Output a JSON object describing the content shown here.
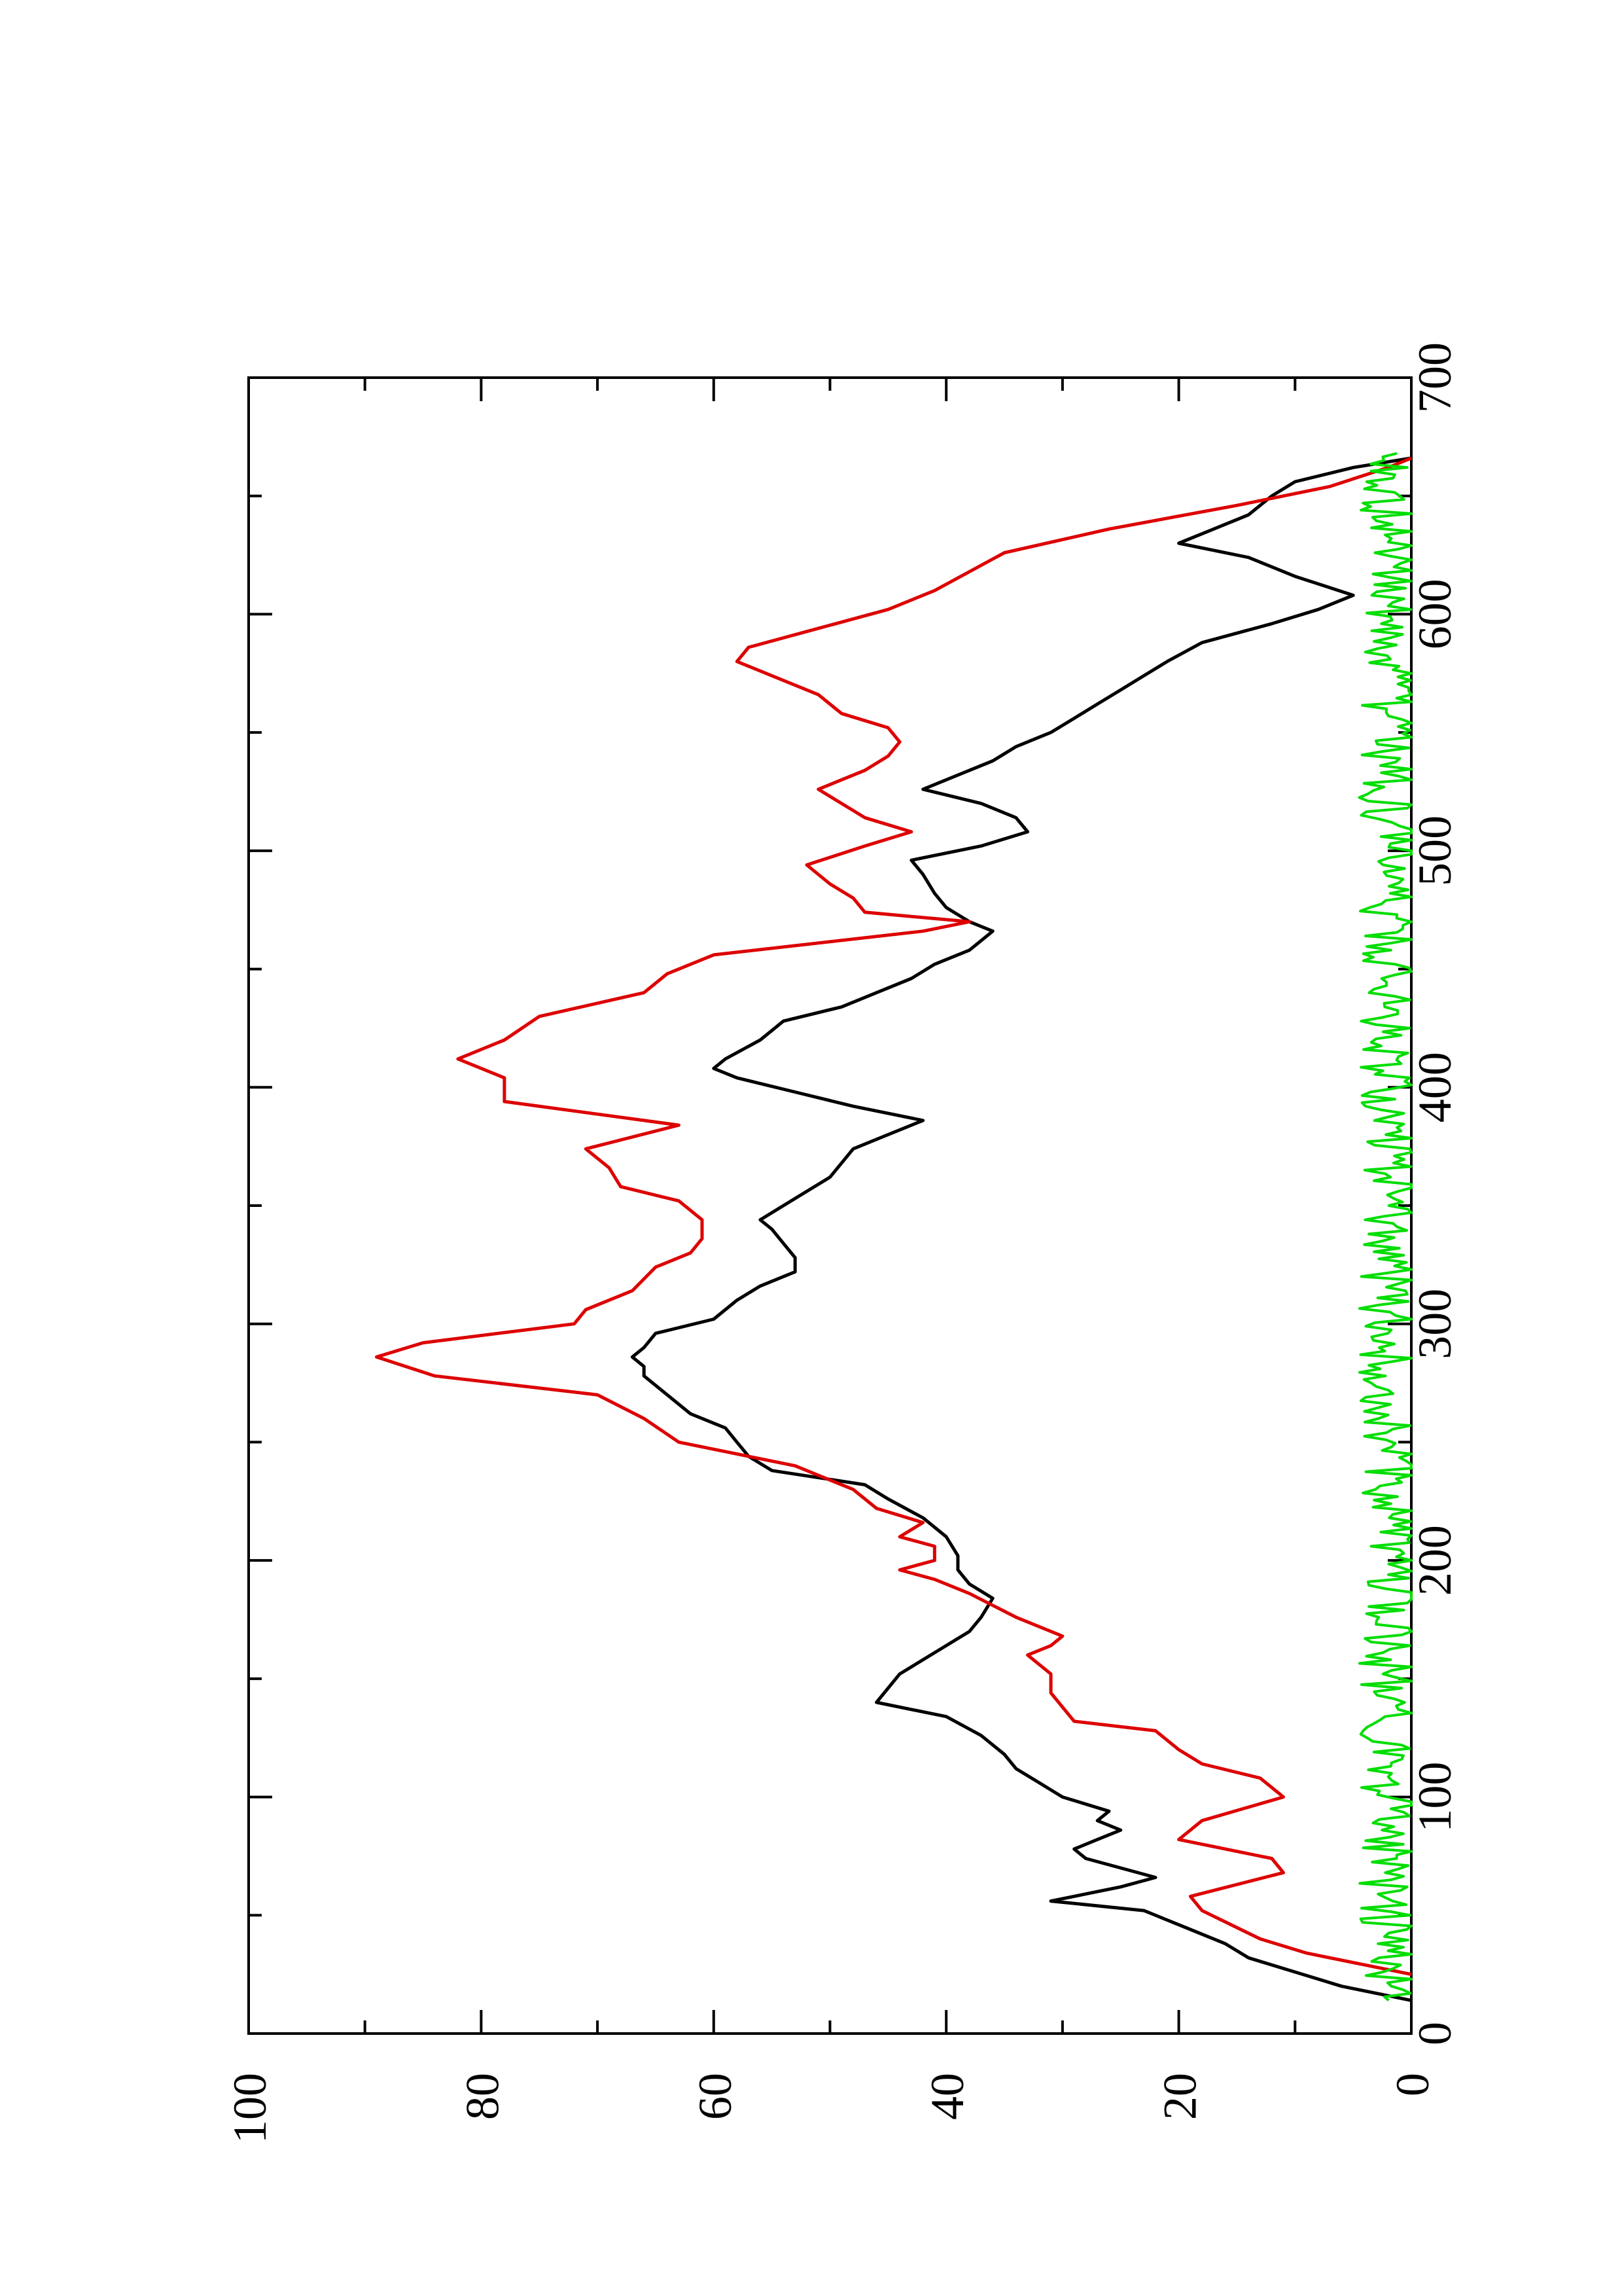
{
  "chart_data": {
    "type": "line",
    "orientation": "rotated-90-ccw",
    "title": "",
    "xlabel": "",
    "ylabel": "",
    "xlim": [
      0,
      700
    ],
    "ylim": [
      0,
      100
    ],
    "x_ticks": [
      "0",
      "100",
      "200",
      "300",
      "400",
      "500",
      "600",
      "700"
    ],
    "y_ticks": [
      "0",
      "20",
      "40",
      "60",
      "80",
      "100"
    ],
    "grid": false,
    "legend": "none",
    "series": [
      {
        "color": "#000000",
        "points": [
          [
            14,
            0
          ],
          [
            20,
            6
          ],
          [
            26,
            10
          ],
          [
            32,
            14
          ],
          [
            38,
            16
          ],
          [
            44,
            19
          ],
          [
            52,
            23
          ],
          [
            56,
            31
          ],
          [
            62,
            25
          ],
          [
            66,
            22
          ],
          [
            70,
            25
          ],
          [
            74,
            28
          ],
          [
            78,
            29
          ],
          [
            82,
            27
          ],
          [
            86,
            25
          ],
          [
            90,
            27
          ],
          [
            94,
            26
          ],
          [
            100,
            30
          ],
          [
            106,
            32
          ],
          [
            112,
            34
          ],
          [
            118,
            35
          ],
          [
            126,
            37
          ],
          [
            134,
            40
          ],
          [
            140,
            46
          ],
          [
            146,
            45
          ],
          [
            152,
            44
          ],
          [
            158,
            42
          ],
          [
            164,
            40
          ],
          [
            170,
            38
          ],
          [
            176,
            37
          ],
          [
            184,
            36
          ],
          [
            190,
            38
          ],
          [
            196,
            39
          ],
          [
            202,
            39
          ],
          [
            210,
            40
          ],
          [
            218,
            42
          ],
          [
            226,
            45
          ],
          [
            232,
            47
          ],
          [
            238,
            55
          ],
          [
            244,
            57
          ],
          [
            250,
            58
          ],
          [
            256,
            59
          ],
          [
            262,
            62
          ],
          [
            270,
            64
          ],
          [
            278,
            66
          ],
          [
            282,
            66
          ],
          [
            286,
            67
          ],
          [
            290,
            66
          ],
          [
            296,
            65
          ],
          [
            302,
            60
          ],
          [
            310,
            58
          ],
          [
            316,
            56
          ],
          [
            322,
            53
          ],
          [
            328,
            53
          ],
          [
            334,
            54
          ],
          [
            340,
            55
          ],
          [
            344,
            56
          ],
          [
            350,
            54
          ],
          [
            356,
            52
          ],
          [
            362,
            50
          ],
          [
            368,
            49
          ],
          [
            374,
            48
          ],
          [
            380,
            45
          ],
          [
            386,
            42
          ],
          [
            392,
            48
          ],
          [
            398,
            53
          ],
          [
            404,
            58
          ],
          [
            408,
            60
          ],
          [
            412,
            59
          ],
          [
            420,
            56
          ],
          [
            428,
            54
          ],
          [
            434,
            49
          ],
          [
            440,
            46
          ],
          [
            446,
            43
          ],
          [
            452,
            41
          ],
          [
            458,
            38
          ],
          [
            466,
            36
          ],
          [
            470,
            38
          ],
          [
            476,
            40
          ],
          [
            482,
            41
          ],
          [
            490,
            42
          ],
          [
            496,
            43
          ],
          [
            502,
            37
          ],
          [
            508,
            33
          ],
          [
            514,
            34
          ],
          [
            520,
            37
          ],
          [
            526,
            42
          ],
          [
            532,
            39
          ],
          [
            538,
            36
          ],
          [
            544,
            34
          ],
          [
            550,
            31
          ],
          [
            556,
            29
          ],
          [
            562,
            27
          ],
          [
            568,
            25
          ],
          [
            574,
            23
          ],
          [
            580,
            21
          ],
          [
            588,
            18
          ],
          [
            596,
            12
          ],
          [
            602,
            8
          ],
          [
            608,
            5
          ],
          [
            616,
            10
          ],
          [
            624,
            14
          ],
          [
            630,
            20
          ],
          [
            636,
            17
          ],
          [
            642,
            14
          ],
          [
            650,
            12
          ],
          [
            656,
            10
          ],
          [
            662,
            5
          ],
          [
            666,
            0
          ]
        ]
      },
      {
        "color": "#dd0000",
        "points": [
          [
            25,
            0
          ],
          [
            34,
            9
          ],
          [
            40,
            13
          ],
          [
            52,
            18
          ],
          [
            58,
            19
          ],
          [
            68,
            11
          ],
          [
            74,
            12
          ],
          [
            82,
            20
          ],
          [
            90,
            18
          ],
          [
            100,
            11
          ],
          [
            108,
            13
          ],
          [
            114,
            18
          ],
          [
            120,
            20
          ],
          [
            128,
            22
          ],
          [
            132,
            29
          ],
          [
            144,
            31
          ],
          [
            152,
            31
          ],
          [
            160,
            33
          ],
          [
            164,
            31
          ],
          [
            168,
            30
          ],
          [
            176,
            34
          ],
          [
            186,
            38
          ],
          [
            192,
            41
          ],
          [
            196,
            44
          ],
          [
            200,
            41
          ],
          [
            206,
            41
          ],
          [
            210,
            44
          ],
          [
            216,
            42
          ],
          [
            222,
            46
          ],
          [
            230,
            48
          ],
          [
            240,
            53
          ],
          [
            250,
            63
          ],
          [
            260,
            66
          ],
          [
            270,
            70
          ],
          [
            278,
            84
          ],
          [
            286,
            89
          ],
          [
            292,
            85
          ],
          [
            300,
            72
          ],
          [
            306,
            71
          ],
          [
            314,
            67
          ],
          [
            324,
            65
          ],
          [
            330,
            62
          ],
          [
            336,
            61
          ],
          [
            344,
            61
          ],
          [
            352,
            63
          ],
          [
            358,
            68
          ],
          [
            366,
            69
          ],
          [
            374,
            71
          ],
          [
            384,
            63
          ],
          [
            394,
            78
          ],
          [
            404,
            78
          ],
          [
            412,
            82
          ],
          [
            420,
            78
          ],
          [
            430,
            75
          ],
          [
            440,
            66
          ],
          [
            448,
            64
          ],
          [
            456,
            60
          ],
          [
            466,
            42
          ],
          [
            470,
            38
          ],
          [
            474,
            47
          ],
          [
            480,
            48
          ],
          [
            486,
            50
          ],
          [
            494,
            52
          ],
          [
            502,
            47
          ],
          [
            508,
            43
          ],
          [
            514,
            47
          ],
          [
            520,
            49
          ],
          [
            526,
            51
          ],
          [
            534,
            47
          ],
          [
            540,
            45
          ],
          [
            546,
            44
          ],
          [
            552,
            45
          ],
          [
            558,
            49
          ],
          [
            566,
            51
          ],
          [
            574,
            55
          ],
          [
            580,
            58
          ],
          [
            586,
            57
          ],
          [
            594,
            51
          ],
          [
            602,
            45
          ],
          [
            610,
            41
          ],
          [
            618,
            38
          ],
          [
            626,
            35
          ],
          [
            636,
            26
          ],
          [
            646,
            15
          ],
          [
            654,
            7
          ],
          [
            662,
            2
          ],
          [
            666,
            0
          ]
        ]
      },
      {
        "color": "#00dd00",
        "noise": true,
        "baseline": 2,
        "amplitude": 2.5,
        "x_range": [
          14,
          668
        ]
      }
    ]
  }
}
